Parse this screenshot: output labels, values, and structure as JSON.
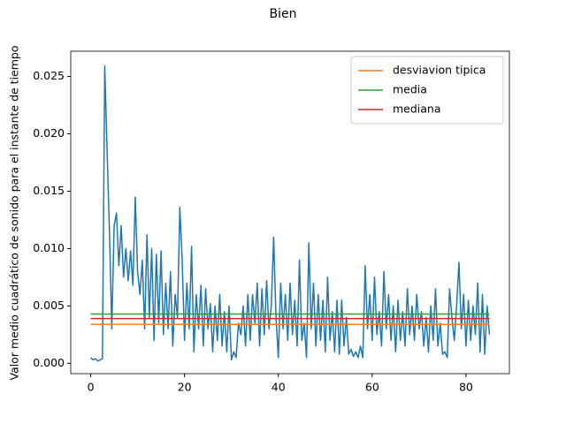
{
  "chart_data": {
    "type": "line",
    "title": "Bien",
    "y_label": "Valor medio cuadrático de sonido para el instante de tiempo",
    "xlim": [
      -4.25,
      89.25
    ],
    "ylim": [
      -0.0009,
      0.0272
    ],
    "xticks": [
      0,
      20,
      40,
      60,
      80
    ],
    "yticks": [
      {
        "value": 0,
        "label": "0.000"
      },
      {
        "value": 0.005,
        "label": "0.005"
      },
      {
        "value": 0.01,
        "label": "0.010"
      },
      {
        "value": 0.015,
        "label": "0.015"
      },
      {
        "value": 0.02,
        "label": "0.020"
      },
      {
        "value": 0.025,
        "label": "0.025"
      }
    ],
    "grid": false,
    "legend": "upper right",
    "series": [
      {
        "color": "#1f77b4",
        "x": [
          0,
          0.5,
          1,
          1.5,
          2,
          2.5,
          3,
          3.5,
          4,
          4.5,
          5,
          5.5,
          6,
          6.5,
          7,
          7.5,
          8,
          8.5,
          9,
          9.5,
          10,
          10.5,
          11,
          11.5,
          12,
          12.5,
          13,
          13.5,
          14,
          14.5,
          15,
          15.5,
          16,
          16.5,
          17,
          17.5,
          18,
          18.5,
          19,
          19.5,
          20,
          20.5,
          21,
          21.5,
          22,
          22.5,
          23,
          23.5,
          24,
          24.5,
          25,
          25.5,
          26,
          26.5,
          27,
          27.5,
          28,
          28.5,
          29,
          29.5,
          30,
          30.5,
          31,
          31.5,
          32,
          32.5,
          33,
          33.5,
          34,
          34.5,
          35,
          35.5,
          36,
          36.5,
          37,
          37.5,
          38,
          38.5,
          39,
          39.5,
          40,
          40.5,
          41,
          41.5,
          42,
          42.5,
          43,
          43.5,
          44,
          44.5,
          45,
          45.5,
          46,
          46.5,
          47,
          47.5,
          48,
          48.5,
          49,
          49.5,
          50,
          50.5,
          51,
          51.5,
          52,
          52.5,
          53,
          53.5,
          54,
          54.5,
          55,
          55.5,
          56,
          56.5,
          57,
          57.5,
          58,
          58.5,
          59,
          59.5,
          60,
          60.5,
          61,
          61.5,
          62,
          62.5,
          63,
          63.5,
          64,
          64.5,
          65,
          65.5,
          66,
          66.5,
          67,
          67.5,
          68,
          68.5,
          69,
          69.5,
          70,
          70.5,
          71,
          71.5,
          72,
          72.5,
          73,
          73.5,
          74,
          74.5,
          75,
          75.5,
          76,
          76.5,
          77,
          77.5,
          78,
          78.5,
          79,
          79.5,
          80,
          80.5,
          81,
          81.5,
          82,
          82.5,
          83,
          83.5,
          84,
          84.5,
          85
        ],
        "values": [
          0.0005,
          0.0003,
          0.0004,
          0.0002,
          0.0003,
          0.0004,
          0.0259,
          0.0185,
          0.0115,
          0.003,
          0.012,
          0.0131,
          0.0085,
          0.012,
          0.0075,
          0.01,
          0.0072,
          0.0098,
          0.0068,
          0.0145,
          0.008,
          0.006,
          0.009,
          0.003,
          0.0112,
          0.004,
          0.01,
          0.002,
          0.0095,
          0.0035,
          0.0098,
          0.0025,
          0.007,
          0.003,
          0.008,
          0.0015,
          0.006,
          0.004,
          0.0136,
          0.009,
          0.002,
          0.007,
          0.003,
          0.0102,
          0.001,
          0.006,
          0.003,
          0.0068,
          0.0015,
          0.0065,
          0.003,
          0.0052,
          0.001,
          0.005,
          0.002,
          0.006,
          0.0015,
          0.0045,
          0.001,
          0.005,
          0.0003,
          0.001,
          0.0005,
          0.0035,
          0.0025,
          0.005,
          0.0015,
          0.006,
          0.002,
          0.006,
          0.0035,
          0.007,
          0.0015,
          0.0065,
          0.0025,
          0.0072,
          0.003,
          0.005,
          0.011,
          0.004,
          0.0005,
          0.007,
          0.003,
          0.006,
          0.002,
          0.007,
          0.0025,
          0.0055,
          0.0015,
          0.009,
          0.002,
          0.0035,
          0.0005,
          0.0105,
          0.003,
          0.007,
          0.0015,
          0.006,
          0.002,
          0.0055,
          0.001,
          0.0075,
          0.002,
          0.0045,
          0.001,
          0.0055,
          0.0008,
          0.0055,
          0.0015,
          0.004,
          0.0008,
          0.0012,
          0.0006,
          0.001,
          0.0005,
          0.0015,
          0.0005,
          0.0085,
          0.003,
          0.006,
          0.002,
          0.0075,
          0.0025,
          0.0045,
          0.0015,
          0.008,
          0.003,
          0.006,
          0.002,
          0.005,
          0.001,
          0.0055,
          0.002,
          0.0045,
          0.0015,
          0.0065,
          0.0025,
          0.005,
          0.002,
          0.006,
          0.003,
          0.0045,
          0.0015,
          0.004,
          0.001,
          0.005,
          0.002,
          0.0065,
          0.0015,
          0.0035,
          0.0008,
          0.001,
          0.0005,
          0.0065,
          0.004,
          0.002,
          0.005,
          0.0088,
          0.003,
          0.006,
          0.0015,
          0.0055,
          0.002,
          0.005,
          0.0025,
          0.007,
          0.001,
          0.006,
          0.0008,
          0.005,
          0.0025
        ]
      },
      {
        "name": "desviavion tipica",
        "color": "#ff7f0e",
        "x": [
          0,
          85
        ],
        "values": [
          0.0034,
          0.0034
        ]
      },
      {
        "name": "media",
        "color": "#2ca02c",
        "x": [
          0,
          85
        ],
        "values": [
          0.0043,
          0.0043
        ]
      },
      {
        "name": "mediana",
        "color": "#d62728",
        "x": [
          0,
          85
        ],
        "values": [
          0.0039,
          0.0039
        ]
      }
    ]
  }
}
